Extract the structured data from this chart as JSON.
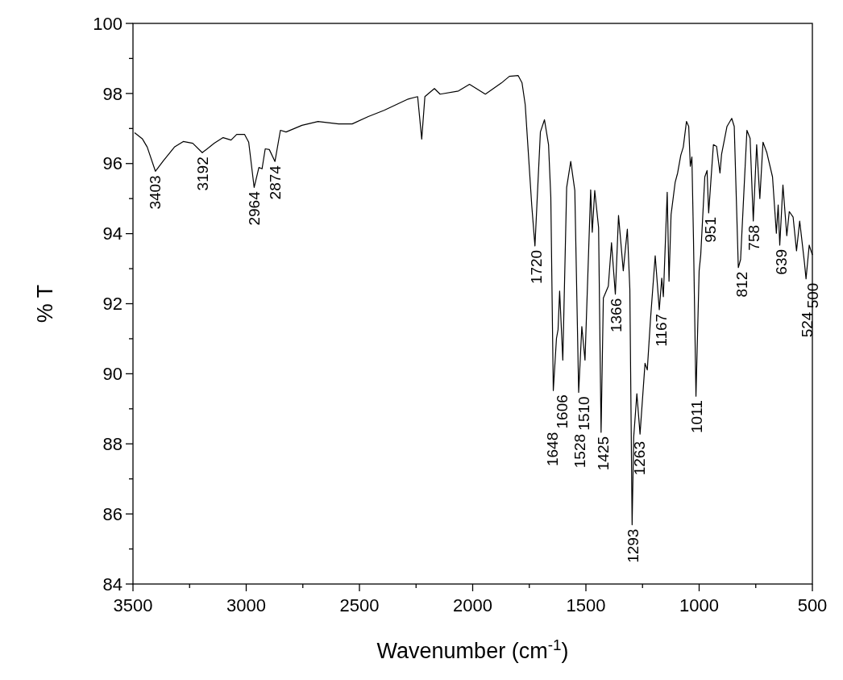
{
  "chart_data": {
    "type": "line",
    "xlabel": "Wavenumber (cm$^{-1}$)",
    "ylabel": "% T",
    "xlim": [
      3500,
      500
    ],
    "ylim": [
      84,
      100
    ],
    "xticks": [
      3500,
      {
        "value": 3250,
        "label": null
      },
      3000,
      {
        "value": 2750,
        "label": null
      },
      2500,
      {
        "value": 2250,
        "label": null
      },
      2000,
      {
        "value": 1750,
        "label": null
      },
      1500,
      {
        "value": 1250,
        "label": null
      },
      1000,
      {
        "value": 750,
        "label": null
      },
      500
    ],
    "yticks": [
      84,
      {
        "value": 85,
        "label": null
      },
      86,
      {
        "value": 87,
        "label": null
      },
      88,
      {
        "value": 89,
        "label": null
      },
      90,
      {
        "value": 91,
        "label": null
      },
      92,
      {
        "value": 93,
        "label": null
      },
      94,
      {
        "value": 95,
        "label": null
      },
      96,
      {
        "value": 97,
        "label": null
      },
      98,
      {
        "value": 99,
        "label": null
      },
      100
    ],
    "grid": false,
    "marker": "none",
    "line_style": "solid",
    "series": [
      {
        "color": "#000000",
        "x": [
          3493,
          3458,
          3437,
          3401,
          3366,
          3317,
          3278,
          3236,
          3194,
          3141,
          3102,
          3067,
          3042,
          3007,
          2989,
          2965,
          2944,
          2930,
          2916,
          2898,
          2873,
          2849,
          2824,
          2754,
          2683,
          2592,
          2532,
          2461,
          2391,
          2285,
          2243,
          2225,
          2211,
          2169,
          2144,
          2063,
          2014,
          1944,
          1873,
          1838,
          1799,
          1782,
          1768,
          1739,
          1725,
          1701,
          1683,
          1665,
          1655,
          1644,
          1630,
          1623,
          1616,
          1602,
          1585,
          1567,
          1549,
          1532,
          1518,
          1504,
          1479,
          1472,
          1461,
          1444,
          1433,
          1423,
          1401,
          1387,
          1370,
          1356,
          1335,
          1317,
          1306,
          1296,
          1289,
          1275,
          1261,
          1239,
          1229,
          1215,
          1194,
          1176,
          1165,
          1158,
          1141,
          1133,
          1124,
          1106,
          1095,
          1081,
          1070,
          1056,
          1046,
          1039,
          1032,
          1025,
          1014,
          1000,
          993,
          975,
          965,
          958,
          937,
          923,
          908,
          901,
          877,
          856,
          845,
          827,
          817,
          789,
          775,
          761,
          746,
          732,
          718,
          701,
          676,
          659,
          651,
          644,
          630,
          613,
          602,
          585,
          570,
          556,
          535,
          528,
          514,
          500
        ],
        "values": [
          96.88,
          96.7,
          96.47,
          95.78,
          96.08,
          96.47,
          96.63,
          96.58,
          96.31,
          96.58,
          96.74,
          96.67,
          96.83,
          96.83,
          96.61,
          95.32,
          95.89,
          95.85,
          96.42,
          96.4,
          96.06,
          96.95,
          96.9,
          97.09,
          97.2,
          97.13,
          97.13,
          97.34,
          97.52,
          97.84,
          97.91,
          96.7,
          97.91,
          98.14,
          97.98,
          98.07,
          98.26,
          97.98,
          98.3,
          98.49,
          98.51,
          98.3,
          97.68,
          94.79,
          93.65,
          96.9,
          97.25,
          96.54,
          95.05,
          89.52,
          91.01,
          91.26,
          92.36,
          90.39,
          95.32,
          96.06,
          95.23,
          89.47,
          91.35,
          90.39,
          95.25,
          94.04,
          95.23,
          94.17,
          88.33,
          92.16,
          92.5,
          93.74,
          92.27,
          94.52,
          92.94,
          94.13,
          92.41,
          85.69,
          88.19,
          89.43,
          88.28,
          90.3,
          90.11,
          91.54,
          93.37,
          91.83,
          92.73,
          92.2,
          95.18,
          92.64,
          94.54,
          95.46,
          95.73,
          96.24,
          96.47,
          97.2,
          97.06,
          95.92,
          96.19,
          93.85,
          89.36,
          92.94,
          93.39,
          95.62,
          95.8,
          94.59,
          96.54,
          96.49,
          95.73,
          96.26,
          97.06,
          97.29,
          97.06,
          93.03,
          93.26,
          96.95,
          96.72,
          94.36,
          96.54,
          95.0,
          96.61,
          96.31,
          95.62,
          94.01,
          94.82,
          93.67,
          95.39,
          93.94,
          94.63,
          94.47,
          93.51,
          94.36,
          93.17,
          92.71,
          93.67,
          93.39
        ]
      }
    ],
    "annotations": [
      {
        "text": "3403",
        "x": 3403,
        "y": 95.78
      },
      {
        "text": "3192",
        "x": 3192,
        "y": 96.31
      },
      {
        "text": "2964",
        "x": 2964,
        "y": 95.32
      },
      {
        "text": "2874",
        "x": 2874,
        "y": 96.06
      },
      {
        "text": "1720",
        "x": 1720,
        "y": 93.65
      },
      {
        "text": "1648",
        "x": 1648,
        "y": 89.52
      },
      {
        "text": "1606",
        "x": 1606,
        "y": 90.39
      },
      {
        "text": "1528",
        "x": 1528,
        "y": 89.47
      },
      {
        "text": "1510",
        "x": 1510,
        "y": 90.39
      },
      {
        "text": "1425",
        "x": 1425,
        "y": 88.33
      },
      {
        "text": "1366",
        "x": 1366,
        "y": 92.27
      },
      {
        "text": "1293",
        "x": 1293,
        "y": 85.69
      },
      {
        "text": "1263",
        "x": 1263,
        "y": 88.28
      },
      {
        "text": "1167",
        "x": 1167,
        "y": 92.2
      },
      {
        "text": "1011",
        "x": 1011,
        "y": 89.36
      },
      {
        "text": "951",
        "x": 951,
        "y": 94.59
      },
      {
        "text": "812",
        "x": 812,
        "y": 93.03
      },
      {
        "text": "758",
        "x": 758,
        "y": 94.36
      },
      {
        "text": "639",
        "x": 639,
        "y": 93.67
      },
      {
        "text": "524",
        "x": 524,
        "y": 92.71
      },
      {
        "text": "500",
        "x": 500,
        "y": 93.39
      }
    ]
  }
}
